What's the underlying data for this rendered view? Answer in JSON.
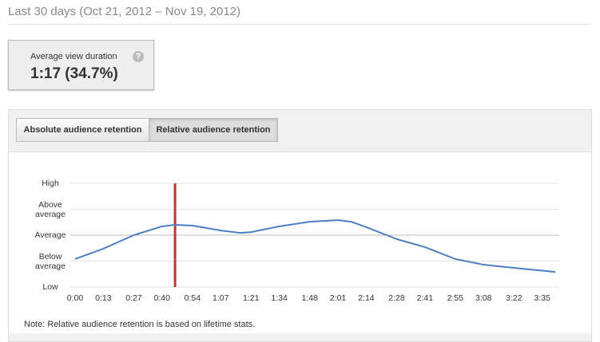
{
  "header": {
    "title": "Last 30 days (Oct 21, 2012 – Nov 19, 2012)"
  },
  "card": {
    "label": "Average view duration",
    "value": "1:17 (34.7%)"
  },
  "tabs": [
    "Absolute audience retention",
    "Relative audience retention"
  ],
  "active_tab": 1,
  "chart_data": {
    "type": "line",
    "x": [
      0,
      13,
      27,
      40,
      46,
      54,
      67,
      76,
      81,
      94,
      108,
      121,
      127,
      134,
      148,
      161,
      175,
      188,
      202,
      221
    ],
    "series": [
      {
        "color": "#4a7fc1",
        "values": [
          1.08,
          1.48,
          2.0,
          2.34,
          2.4,
          2.37,
          2.18,
          2.09,
          2.12,
          2.34,
          2.52,
          2.58,
          2.52,
          2.31,
          1.85,
          1.54,
          1.08,
          0.86,
          0.74,
          0.58
        ]
      }
    ],
    "xlim": [
      0,
      221
    ],
    "xticks": [
      {
        "value": 0,
        "label": "0:00"
      },
      {
        "value": 13,
        "label": "0:13"
      },
      {
        "value": 27,
        "label": "0:27"
      },
      {
        "value": 40,
        "label": "0:40"
      },
      {
        "value": 54,
        "label": "0:54"
      },
      {
        "value": 67,
        "label": "1:07"
      },
      {
        "value": 81,
        "label": "1:21"
      },
      {
        "value": 94,
        "label": "1:34"
      },
      {
        "value": 108,
        "label": "1:48"
      },
      {
        "value": 121,
        "label": "2:01"
      },
      {
        "value": 134,
        "label": "2:14"
      },
      {
        "value": 148,
        "label": "2:28"
      },
      {
        "value": 161,
        "label": "2:41"
      },
      {
        "value": 175,
        "label": "2:55"
      },
      {
        "value": 188,
        "label": "3:08"
      },
      {
        "value": 202,
        "label": "3:22"
      },
      {
        "value": 215,
        "label": "3:35"
      }
    ],
    "ylim": [
      0,
      4
    ],
    "yticks": [
      {
        "value": 0,
        "label": "Low"
      },
      {
        "value": 1,
        "label": "Below average"
      },
      {
        "value": 2,
        "label": "Average"
      },
      {
        "value": 3,
        "label": "Above average"
      },
      {
        "value": 4,
        "label": "High"
      }
    ],
    "grid": true,
    "marker": {
      "value": 46,
      "color": "#c0392b"
    }
  },
  "note": "Note: Relative audience retention is based on lifetime stats."
}
